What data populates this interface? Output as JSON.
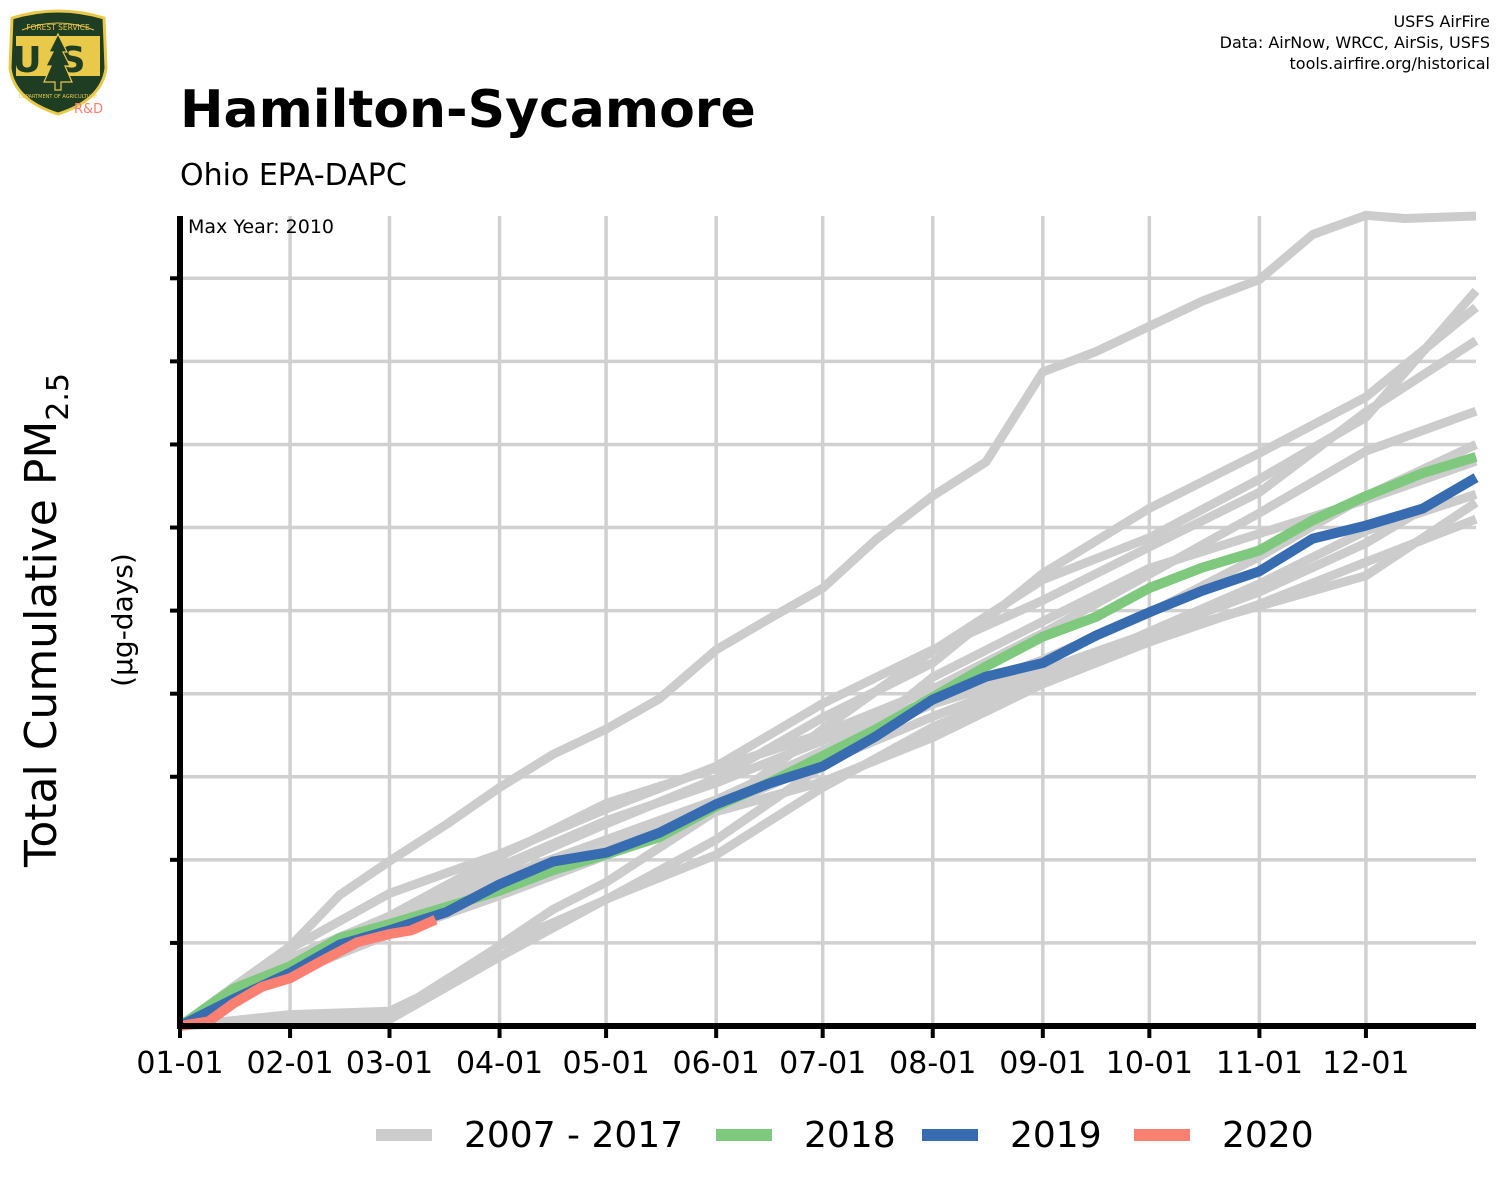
{
  "header": {
    "title": "Hamilton-Sycamore",
    "subtitle": "Ohio EPA-DAPC",
    "credits": [
      "USFS AirFire",
      "Data: AirNow, WRCC, AirSis, USFS",
      "tools.airfire.org/historical"
    ],
    "logo": {
      "badge_text": "US",
      "arc_text": "FOREST SERVICE",
      "bottom_text": "DEPARTMENT OF AGRICULTURE",
      "tag": "R&D",
      "icon": "usfs-shield-tree-icon"
    }
  },
  "chart_data": {
    "type": "line",
    "title": "Hamilton-Sycamore",
    "subtitle": "Ohio EPA-DAPC",
    "annotation": "Max Year: 2010",
    "ylabel": "Total Cumulative PM",
    "ylabel_subscript": "2.5",
    "ylabel_units": "(µg-days)",
    "xlabel": "",
    "x_ticks": [
      "01-01",
      "02-01",
      "03-01",
      "04-01",
      "05-01",
      "06-01",
      "07-01",
      "08-01",
      "09-01",
      "10-01",
      "11-01",
      "12-01"
    ],
    "x_tick_days": [
      0,
      31,
      59,
      90,
      120,
      151,
      181,
      212,
      243,
      273,
      304,
      334
    ],
    "xlim_days": [
      0,
      365
    ],
    "ylim": [
      0,
      9.75
    ],
    "y_tick_count": 9,
    "y_tick_labels_shown": false,
    "grid": true,
    "legend_position": "bottom",
    "legend": [
      {
        "label": "2007 - 2017",
        "color": "#cccccc"
      },
      {
        "label": "2018",
        "color": "#7fc97f"
      },
      {
        "label": "2019",
        "color": "#386cb0"
      },
      {
        "label": "2020",
        "color": "#fb8072"
      }
    ],
    "series": [
      {
        "group": "2007 - 2017",
        "color": "#cccccc",
        "x": [
          0,
          15,
          31,
          45,
          59,
          75,
          90,
          105,
          120,
          135,
          151,
          166,
          181,
          196,
          212,
          227,
          243,
          258,
          273,
          288,
          304,
          319,
          334,
          345,
          365
        ],
        "y": [
          0,
          0.5,
          0.95,
          1.55,
          2.0,
          2.45,
          2.85,
          3.25,
          3.6,
          3.95,
          4.5,
          4.9,
          5.3,
          5.85,
          6.35,
          6.8,
          7.9,
          8.1,
          8.4,
          8.75,
          9.0,
          9.5,
          9.75,
          9.75,
          9.75
        ]
      },
      {
        "group": "2007 - 2017",
        "color": "#cccccc",
        "x": [
          0,
          31,
          59,
          75,
          90,
          105,
          120,
          151,
          181,
          212,
          243,
          273,
          304,
          334,
          365
        ],
        "y": [
          0,
          0.15,
          0.15,
          0.5,
          1.0,
          1.4,
          1.7,
          2.6,
          3.6,
          4.5,
          5.35,
          5.9,
          6.6,
          7.3,
          8.85
        ]
      },
      {
        "group": "2007 - 2017",
        "color": "#cccccc",
        "x": [
          0,
          31,
          59,
          90,
          120,
          151,
          181,
          212,
          243,
          273,
          304,
          334,
          365
        ],
        "y": [
          0,
          0.7,
          1.3,
          1.9,
          2.45,
          2.95,
          3.7,
          4.4,
          5.45,
          6.2,
          6.9,
          7.6,
          8.65
        ]
      },
      {
        "group": "2007 - 2017",
        "color": "#cccccc",
        "x": [
          0,
          31,
          59,
          90,
          120,
          151,
          181,
          212,
          243,
          273,
          304,
          334,
          365
        ],
        "y": [
          0,
          0.9,
          1.6,
          2.1,
          2.6,
          3.1,
          3.9,
          4.55,
          5.1,
          5.75,
          6.45,
          7.4,
          8.25
        ]
      },
      {
        "group": "2007 - 2017",
        "color": "#cccccc",
        "x": [
          0,
          31,
          59,
          90,
          120,
          151,
          181,
          212,
          243,
          273,
          304,
          334,
          365
        ],
        "y": [
          0,
          0.8,
          1.35,
          2.05,
          2.65,
          3.1,
          3.55,
          4.05,
          4.7,
          5.45,
          6.2,
          6.9,
          7.4
        ]
      },
      {
        "group": "2007 - 2017",
        "color": "#cccccc",
        "x": [
          0,
          31,
          59,
          90,
          120,
          151,
          181,
          212,
          243,
          273,
          304,
          334,
          365
        ],
        "y": [
          0,
          0.75,
          1.25,
          1.9,
          2.45,
          2.95,
          3.45,
          3.9,
          4.4,
          5.0,
          5.65,
          6.35,
          7.0
        ]
      },
      {
        "group": "2007 - 2017",
        "color": "#cccccc",
        "x": [
          0,
          31,
          59,
          90,
          120,
          151,
          181,
          212,
          243,
          273,
          304,
          334,
          365
        ],
        "y": [
          0,
          0.7,
          1.2,
          1.75,
          2.25,
          2.75,
          3.3,
          3.85,
          4.3,
          4.75,
          5.2,
          5.8,
          6.6
        ]
      },
      {
        "group": "2007 - 2017",
        "color": "#cccccc",
        "x": [
          0,
          31,
          59,
          90,
          120,
          151,
          181,
          212,
          243,
          273,
          304,
          334,
          365
        ],
        "y": [
          0,
          0.1,
          0.1,
          0.95,
          1.55,
          2.25,
          3.1,
          4.2,
          4.9,
          5.5,
          5.9,
          6.35,
          6.8
        ]
      },
      {
        "group": "2007 - 2017",
        "color": "#cccccc",
        "x": [
          0,
          31,
          59,
          90,
          120,
          151,
          181,
          212,
          243,
          273,
          304,
          334,
          365
        ],
        "y": [
          0,
          0.65,
          1.15,
          1.7,
          2.15,
          2.6,
          3.15,
          3.75,
          4.25,
          4.65,
          5.05,
          5.45,
          6.3
        ]
      },
      {
        "group": "2007 - 2017",
        "color": "#cccccc",
        "x": [
          0,
          31,
          59,
          90,
          120,
          151,
          181,
          212,
          243,
          273,
          304,
          334,
          365
        ],
        "y": [
          0,
          0.6,
          1.1,
          1.6,
          2.05,
          2.55,
          2.95,
          3.5,
          4.1,
          4.6,
          5.1,
          5.6,
          6.1
        ]
      },
      {
        "group": "2007 - 2017",
        "color": "#cccccc",
        "x": [
          0,
          31,
          59,
          90,
          120,
          151,
          181,
          212,
          243,
          273,
          304,
          334,
          365
        ],
        "y": [
          0,
          0.05,
          0.1,
          0.85,
          1.5,
          2.05,
          2.9,
          3.6,
          4.15,
          4.75,
          5.35,
          5.95,
          6.4
        ]
      },
      {
        "name": "2018",
        "color": "#7fc97f",
        "x": [
          0,
          15,
          31,
          45,
          59,
          75,
          90,
          105,
          120,
          135,
          151,
          166,
          181,
          196,
          212,
          227,
          243,
          258,
          273,
          288,
          304,
          319,
          334,
          350,
          365
        ],
        "y": [
          0,
          0.45,
          0.75,
          1.05,
          1.2,
          1.45,
          1.65,
          1.85,
          2.05,
          2.3,
          2.65,
          2.9,
          3.25,
          3.6,
          3.95,
          4.3,
          4.7,
          4.95,
          5.25,
          5.5,
          5.75,
          6.1,
          6.35,
          6.65,
          6.85
        ]
      },
      {
        "name": "2019",
        "color": "#386cb0",
        "x": [
          0,
          15,
          31,
          45,
          59,
          75,
          90,
          105,
          120,
          135,
          151,
          166,
          181,
          196,
          212,
          227,
          243,
          258,
          273,
          288,
          304,
          319,
          334,
          350,
          365
        ],
        "y": [
          0,
          0.35,
          0.65,
          0.95,
          1.15,
          1.4,
          1.7,
          1.95,
          2.1,
          2.35,
          2.65,
          2.9,
          3.15,
          3.5,
          3.9,
          4.2,
          4.4,
          4.7,
          4.95,
          5.25,
          5.5,
          5.85,
          6.0,
          6.25,
          6.6
        ]
      },
      {
        "name": "2020",
        "color": "#fb8072",
        "x": [
          0,
          8,
          15,
          23,
          31,
          40,
          50,
          59,
          65,
          72
        ],
        "y": [
          0,
          0.08,
          0.25,
          0.45,
          0.6,
          0.8,
          0.98,
          1.1,
          1.18,
          1.28
        ]
      }
    ]
  }
}
